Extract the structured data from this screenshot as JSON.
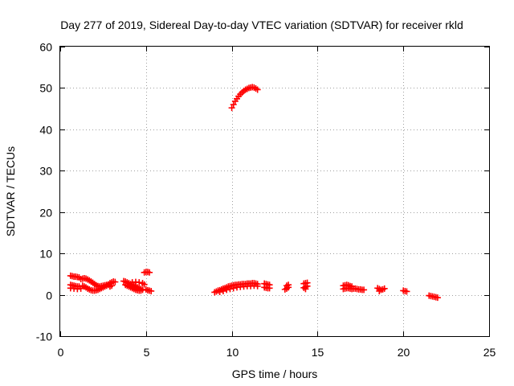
{
  "chart_data": {
    "type": "scatter",
    "title": "Day 277 of 2019, Sidereal Day-to-day VTEC variation (SDTVAR) for receiver rkld",
    "xlabel": "GPS time / hours",
    "ylabel": "SDTVAR / TECUs",
    "xlim": [
      0,
      25
    ],
    "ylim": [
      -10,
      60
    ],
    "xticks": [
      0,
      5,
      10,
      15,
      20,
      25
    ],
    "yticks": [
      -10,
      0,
      10,
      20,
      30,
      40,
      50,
      60
    ],
    "grid": true,
    "marker": "plus",
    "color": "#ff0000",
    "series": [
      {
        "name": "SDTVAR",
        "points": [
          [
            0.6,
            4.6
          ],
          [
            0.7,
            4.5
          ],
          [
            0.8,
            4.4
          ],
          [
            0.9,
            4.4
          ],
          [
            1.0,
            4.3
          ],
          [
            1.1,
            4.2
          ],
          [
            0.6,
            2.4
          ],
          [
            0.7,
            2.3
          ],
          [
            0.8,
            2.2
          ],
          [
            0.9,
            2.1
          ],
          [
            1.0,
            2.0
          ],
          [
            1.1,
            2.0
          ],
          [
            0.6,
            1.6
          ],
          [
            0.8,
            1.5
          ],
          [
            1.0,
            1.4
          ],
          [
            1.2,
            1.5
          ],
          [
            1.2,
            3.8
          ],
          [
            1.3,
            3.9
          ],
          [
            1.4,
            4.0
          ],
          [
            1.5,
            3.9
          ],
          [
            1.6,
            3.7
          ],
          [
            1.7,
            3.5
          ],
          [
            1.8,
            3.2
          ],
          [
            1.9,
            2.9
          ],
          [
            2.0,
            2.6
          ],
          [
            2.1,
            2.3
          ],
          [
            2.2,
            2.1
          ],
          [
            1.3,
            2.2
          ],
          [
            1.4,
            2.0
          ],
          [
            1.5,
            1.8
          ],
          [
            1.6,
            1.5
          ],
          [
            1.7,
            1.3
          ],
          [
            1.8,
            1.1
          ],
          [
            1.9,
            1.0
          ],
          [
            2.0,
            1.0
          ],
          [
            2.1,
            1.1
          ],
          [
            2.2,
            1.2
          ],
          [
            2.3,
            1.4
          ],
          [
            2.4,
            1.6
          ],
          [
            2.3,
            2.0
          ],
          [
            2.4,
            2.1
          ],
          [
            2.5,
            2.2
          ],
          [
            2.6,
            2.3
          ],
          [
            2.7,
            2.4
          ],
          [
            2.8,
            2.5
          ],
          [
            2.5,
            1.8
          ],
          [
            2.6,
            2.0
          ],
          [
            2.7,
            2.2
          ],
          [
            2.8,
            2.4
          ],
          [
            2.9,
            2.8
          ],
          [
            3.0,
            3.0
          ],
          [
            3.1,
            3.2
          ],
          [
            3.2,
            3.1
          ],
          [
            2.9,
            2.0
          ],
          [
            3.0,
            2.2
          ],
          [
            3.7,
            3.3
          ],
          [
            3.8,
            3.2
          ],
          [
            3.9,
            3.0
          ],
          [
            4.0,
            2.8
          ],
          [
            4.1,
            2.6
          ],
          [
            4.2,
            2.4
          ],
          [
            4.3,
            2.2
          ],
          [
            4.4,
            2.0
          ],
          [
            4.5,
            1.8
          ],
          [
            4.6,
            1.6
          ],
          [
            4.7,
            1.4
          ],
          [
            4.8,
            1.2
          ],
          [
            3.8,
            2.4
          ],
          [
            3.9,
            2.2
          ],
          [
            4.0,
            2.0
          ],
          [
            4.1,
            1.8
          ],
          [
            4.2,
            1.6
          ],
          [
            4.3,
            1.4
          ],
          [
            4.4,
            1.2
          ],
          [
            4.5,
            1.1
          ],
          [
            4.6,
            1.0
          ],
          [
            4.7,
            1.0
          ],
          [
            4.2,
            3.0
          ],
          [
            4.4,
            3.1
          ],
          [
            4.6,
            3.0
          ],
          [
            4.8,
            2.8
          ],
          [
            4.9,
            2.5
          ],
          [
            4.9,
            5.4
          ],
          [
            5.0,
            5.5
          ],
          [
            5.1,
            5.5
          ],
          [
            5.2,
            5.4
          ],
          [
            5.0,
            1.3
          ],
          [
            5.1,
            1.1
          ],
          [
            5.2,
            1.0
          ],
          [
            5.3,
            0.9
          ],
          [
            9.0,
            0.6
          ],
          [
            9.1,
            0.8
          ],
          [
            9.2,
            1.0
          ],
          [
            9.3,
            1.1
          ],
          [
            9.4,
            1.3
          ],
          [
            9.5,
            1.5
          ],
          [
            9.6,
            1.6
          ],
          [
            9.7,
            1.8
          ],
          [
            9.8,
            2.0
          ],
          [
            9.9,
            2.1
          ],
          [
            10.0,
            2.2
          ],
          [
            10.1,
            2.3
          ],
          [
            10.2,
            2.4
          ],
          [
            10.3,
            2.4
          ],
          [
            10.4,
            2.5
          ],
          [
            10.5,
            2.5
          ],
          [
            10.6,
            2.6
          ],
          [
            10.7,
            2.6
          ],
          [
            10.8,
            2.6
          ],
          [
            10.9,
            2.7
          ],
          [
            11.0,
            2.7
          ],
          [
            11.1,
            2.7
          ],
          [
            11.2,
            2.8
          ],
          [
            11.3,
            2.8
          ],
          [
            11.4,
            2.7
          ],
          [
            11.5,
            2.6
          ],
          [
            9.3,
            0.7
          ],
          [
            9.5,
            0.9
          ],
          [
            9.7,
            1.2
          ],
          [
            9.9,
            1.4
          ],
          [
            10.1,
            1.6
          ],
          [
            10.3,
            1.8
          ],
          [
            10.5,
            1.9
          ],
          [
            10.7,
            2.0
          ],
          [
            10.9,
            2.1
          ],
          [
            11.1,
            2.1
          ],
          [
            11.3,
            2.2
          ],
          [
            11.5,
            2.1
          ],
          [
            10.0,
            45.2
          ],
          [
            10.1,
            46.0
          ],
          [
            10.2,
            46.8
          ],
          [
            10.3,
            47.4
          ],
          [
            10.4,
            48.0
          ],
          [
            10.5,
            48.5
          ],
          [
            10.6,
            48.9
          ],
          [
            10.7,
            49.3
          ],
          [
            10.8,
            49.6
          ],
          [
            10.9,
            49.8
          ],
          [
            11.0,
            50.0
          ],
          [
            11.1,
            50.1
          ],
          [
            11.2,
            50.2
          ],
          [
            11.3,
            50.1
          ],
          [
            11.4,
            49.9
          ],
          [
            11.5,
            49.6
          ],
          [
            11.9,
            2.7
          ],
          [
            12.0,
            2.6
          ],
          [
            12.1,
            2.5
          ],
          [
            12.2,
            2.4
          ],
          [
            11.9,
            1.8
          ],
          [
            12.0,
            1.7
          ],
          [
            12.1,
            1.6
          ],
          [
            12.2,
            1.6
          ],
          [
            13.1,
            1.3
          ],
          [
            13.2,
            1.5
          ],
          [
            13.3,
            1.8
          ],
          [
            13.2,
            2.2
          ],
          [
            13.3,
            2.4
          ],
          [
            14.2,
            1.7
          ],
          [
            14.3,
            1.9
          ],
          [
            14.4,
            2.1
          ],
          [
            14.2,
            2.7
          ],
          [
            14.3,
            2.8
          ],
          [
            14.4,
            2.9
          ],
          [
            14.3,
            1.4
          ],
          [
            16.5,
            2.2
          ],
          [
            16.6,
            2.3
          ],
          [
            16.7,
            2.4
          ],
          [
            16.8,
            2.3
          ],
          [
            16.9,
            2.1
          ],
          [
            17.0,
            2.0
          ],
          [
            16.5,
            1.4
          ],
          [
            16.6,
            1.5
          ],
          [
            16.7,
            1.6
          ],
          [
            16.8,
            1.6
          ],
          [
            16.9,
            1.5
          ],
          [
            17.0,
            1.4
          ],
          [
            17.1,
            1.5
          ],
          [
            17.2,
            1.5
          ],
          [
            17.3,
            1.4
          ],
          [
            17.4,
            1.3
          ],
          [
            17.5,
            1.3
          ],
          [
            17.6,
            1.2
          ],
          [
            17.7,
            1.2
          ],
          [
            18.5,
            1.6
          ],
          [
            18.6,
            1.4
          ],
          [
            18.7,
            1.2
          ],
          [
            18.8,
            1.3
          ],
          [
            18.9,
            1.5
          ],
          [
            18.6,
            0.9
          ],
          [
            20.0,
            1.0
          ],
          [
            20.1,
            0.9
          ],
          [
            20.2,
            0.8
          ],
          [
            21.5,
            -0.2
          ],
          [
            21.6,
            -0.3
          ],
          [
            21.7,
            -0.4
          ],
          [
            21.8,
            -0.5
          ],
          [
            21.9,
            -0.6
          ],
          [
            22.0,
            -0.7
          ]
        ]
      }
    ]
  }
}
